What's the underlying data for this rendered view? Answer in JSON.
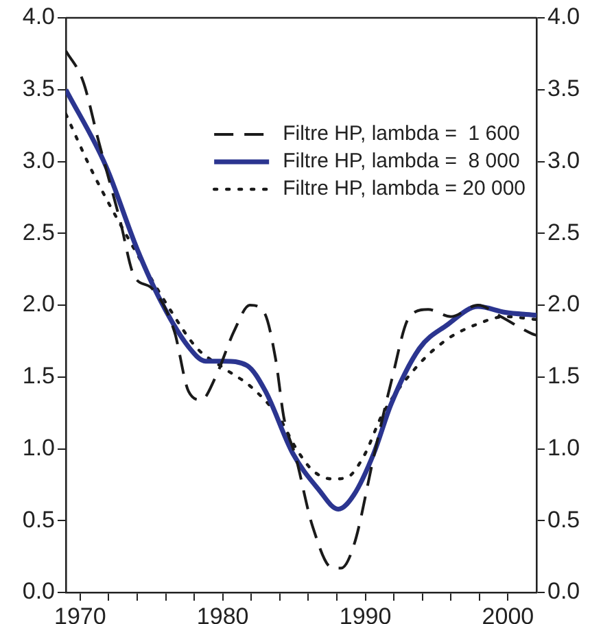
{
  "chart_data": {
    "type": "line",
    "marker": "none",
    "legend": "top right",
    "grid": false,
    "xlim": [
      1969,
      2002
    ],
    "xticks": [
      {
        "value": 1970,
        "label": "1970"
      },
      {
        "value": 1972,
        "label": null
      },
      {
        "value": 1974,
        "label": null
      },
      {
        "value": 1976,
        "label": null
      },
      {
        "value": 1978,
        "label": null
      },
      {
        "value": 1980,
        "label": "1980"
      },
      {
        "value": 1982,
        "label": null
      },
      {
        "value": 1984,
        "label": null
      },
      {
        "value": 1986,
        "label": null
      },
      {
        "value": 1988,
        "label": null
      },
      {
        "value": 1990,
        "label": "1990"
      },
      {
        "value": 1992,
        "label": null
      },
      {
        "value": 1994,
        "label": null
      },
      {
        "value": 1996,
        "label": null
      },
      {
        "value": 1998,
        "label": null
      },
      {
        "value": 2000,
        "label": "2000"
      }
    ],
    "ylim": [
      0,
      4
    ],
    "yticks": [
      {
        "value": 0,
        "label": "0.0"
      },
      {
        "value": 0.5,
        "label": "0.5"
      },
      {
        "value": 1,
        "label": "1.0"
      },
      {
        "value": 1.5,
        "label": "1.5"
      },
      {
        "value": 2,
        "label": "2.0"
      },
      {
        "value": 2.5,
        "label": "2.5"
      },
      {
        "value": 3,
        "label": "3.0"
      },
      {
        "value": 3.5,
        "label": "3.5"
      },
      {
        "value": 4,
        "label": "4.0"
      }
    ],
    "y2lim": [
      0,
      4
    ],
    "y2ticks": [
      {
        "value": 0,
        "label": "0.0"
      },
      {
        "value": 0.5,
        "label": "0.5"
      },
      {
        "value": 1,
        "label": "1.0"
      },
      {
        "value": 1.5,
        "label": "1.5"
      },
      {
        "value": 2,
        "label": "2.0"
      },
      {
        "value": 2.5,
        "label": "2.5"
      },
      {
        "value": 3,
        "label": "3.0"
      },
      {
        "value": 3.5,
        "label": "3.5"
      },
      {
        "value": 4,
        "label": "4.0"
      }
    ],
    "series": [
      {
        "name": "Filtre HP, lambda =  1 600",
        "color": "#1a1a1a",
        "line_style": "dashed",
        "x": [
          1969,
          1970.2,
          1971.3,
          1972.8,
          1973.8,
          1975,
          1976.6,
          1977.6,
          1978.5,
          1979.5,
          1980.8,
          1981.9,
          1982.9,
          1983.7,
          1984.3,
          1985.1,
          1986.3,
          1987.7,
          1988.3,
          1989.2,
          1990.6,
          1991.8,
          1993.1,
          1994.4,
          1996,
          1997.9,
          1999.5,
          2001.7,
          2002
        ],
        "values": [
          3.77,
          3.56,
          3.14,
          2.59,
          2.2,
          2.12,
          1.82,
          1.4,
          1.34,
          1.5,
          1.82,
          2,
          1.95,
          1.63,
          1.21,
          0.95,
          0.46,
          0.17,
          0.17,
          0.33,
          0.95,
          1.46,
          1.92,
          1.97,
          1.92,
          2,
          1.92,
          1.8,
          1.79
        ]
      },
      {
        "name": "Filtre HP, lambda =  8 000",
        "color": "#2b3590",
        "line_style": "solid",
        "x": [
          1969,
          1971.8,
          1974,
          1975.7,
          1977.6,
          1978.8,
          1980.1,
          1981.7,
          1983,
          1984.9,
          1986.7,
          1988.1,
          1989.2,
          1990.6,
          1991.8,
          1993.8,
          1995.7,
          1997.9,
          1999.8,
          2002
        ],
        "values": [
          3.5,
          2.97,
          2.39,
          2.02,
          1.71,
          1.61,
          1.61,
          1.58,
          1.4,
          0.97,
          0.72,
          0.58,
          0.68,
          0.97,
          1.31,
          1.7,
          1.86,
          1.99,
          1.95,
          1.93
        ]
      },
      {
        "name": "Filtre HP, lambda = 20 000",
        "color": "#1a1a1a",
        "line_style": "dotted",
        "x": [
          1969,
          1970.9,
          1973.8,
          1976.3,
          1978.2,
          1980.1,
          1982,
          1984,
          1985.1,
          1986.3,
          1987.7,
          1988.7,
          1989.9,
          1991.2,
          1993.5,
          1995.7,
          1997.9,
          1999.8,
          2002
        ],
        "values": [
          3.33,
          2.92,
          2.39,
          1.97,
          1.7,
          1.56,
          1.43,
          1.21,
          1.01,
          0.85,
          0.79,
          0.8,
          0.95,
          1.24,
          1.56,
          1.76,
          1.87,
          1.92,
          1.9
        ]
      }
    ]
  }
}
